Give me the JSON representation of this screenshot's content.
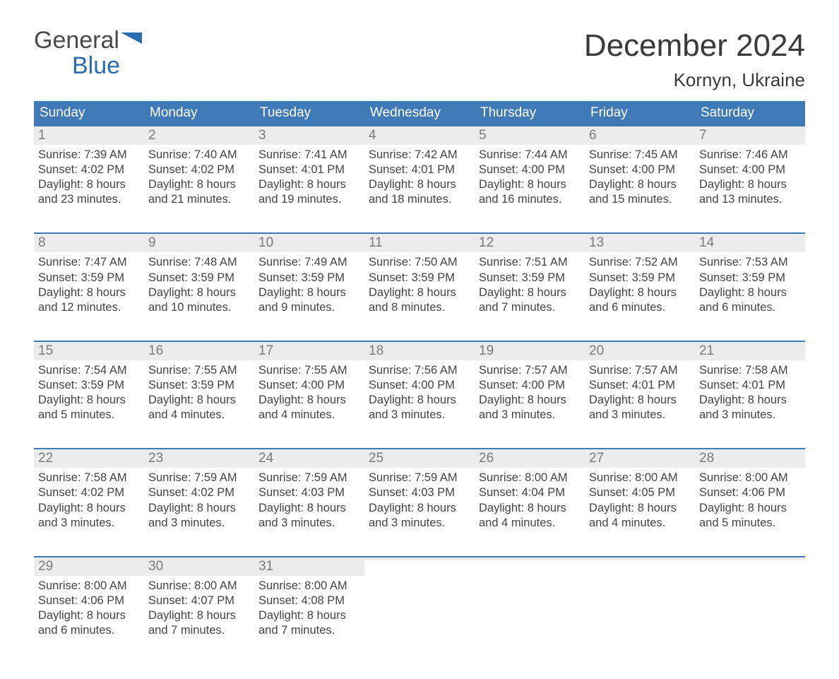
{
  "brand": {
    "line1": "General",
    "line2": "Blue"
  },
  "title": "December 2024",
  "location": "Kornyn, Ukraine",
  "colors": {
    "header_bg": "#3f7ab6",
    "header_text": "#ffffff",
    "week_border": "#3f7ab6",
    "daynum_bg": "#ececec",
    "daynum_text": "#7a7a7a",
    "body_text": "#444444",
    "page_bg": "#ffffff",
    "logo_gray": "#4a4a4a",
    "logo_blue": "#2a6cb0"
  },
  "typography": {
    "title_fontsize": 44,
    "location_fontsize": 26,
    "dow_fontsize": 19,
    "daynum_fontsize": 19,
    "body_fontsize": 16.5,
    "font_family": "Arial"
  },
  "days_of_week": [
    "Sunday",
    "Monday",
    "Tuesday",
    "Wednesday",
    "Thursday",
    "Friday",
    "Saturday"
  ],
  "labels": {
    "sunrise": "Sunrise:",
    "sunset": "Sunset:",
    "daylight": "Daylight:"
  },
  "weeks": [
    [
      {
        "n": "1",
        "sunrise": "7:39 AM",
        "sunset": "4:02 PM",
        "dl1": "8 hours",
        "dl2": "and 23 minutes."
      },
      {
        "n": "2",
        "sunrise": "7:40 AM",
        "sunset": "4:02 PM",
        "dl1": "8 hours",
        "dl2": "and 21 minutes."
      },
      {
        "n": "3",
        "sunrise": "7:41 AM",
        "sunset": "4:01 PM",
        "dl1": "8 hours",
        "dl2": "and 19 minutes."
      },
      {
        "n": "4",
        "sunrise": "7:42 AM",
        "sunset": "4:01 PM",
        "dl1": "8 hours",
        "dl2": "and 18 minutes."
      },
      {
        "n": "5",
        "sunrise": "7:44 AM",
        "sunset": "4:00 PM",
        "dl1": "8 hours",
        "dl2": "and 16 minutes."
      },
      {
        "n": "6",
        "sunrise": "7:45 AM",
        "sunset": "4:00 PM",
        "dl1": "8 hours",
        "dl2": "and 15 minutes."
      },
      {
        "n": "7",
        "sunrise": "7:46 AM",
        "sunset": "4:00 PM",
        "dl1": "8 hours",
        "dl2": "and 13 minutes."
      }
    ],
    [
      {
        "n": "8",
        "sunrise": "7:47 AM",
        "sunset": "3:59 PM",
        "dl1": "8 hours",
        "dl2": "and 12 minutes."
      },
      {
        "n": "9",
        "sunrise": "7:48 AM",
        "sunset": "3:59 PM",
        "dl1": "8 hours",
        "dl2": "and 10 minutes."
      },
      {
        "n": "10",
        "sunrise": "7:49 AM",
        "sunset": "3:59 PM",
        "dl1": "8 hours",
        "dl2": "and 9 minutes."
      },
      {
        "n": "11",
        "sunrise": "7:50 AM",
        "sunset": "3:59 PM",
        "dl1": "8 hours",
        "dl2": "and 8 minutes."
      },
      {
        "n": "12",
        "sunrise": "7:51 AM",
        "sunset": "3:59 PM",
        "dl1": "8 hours",
        "dl2": "and 7 minutes."
      },
      {
        "n": "13",
        "sunrise": "7:52 AM",
        "sunset": "3:59 PM",
        "dl1": "8 hours",
        "dl2": "and 6 minutes."
      },
      {
        "n": "14",
        "sunrise": "7:53 AM",
        "sunset": "3:59 PM",
        "dl1": "8 hours",
        "dl2": "and 6 minutes."
      }
    ],
    [
      {
        "n": "15",
        "sunrise": "7:54 AM",
        "sunset": "3:59 PM",
        "dl1": "8 hours",
        "dl2": "and 5 minutes."
      },
      {
        "n": "16",
        "sunrise": "7:55 AM",
        "sunset": "3:59 PM",
        "dl1": "8 hours",
        "dl2": "and 4 minutes."
      },
      {
        "n": "17",
        "sunrise": "7:55 AM",
        "sunset": "4:00 PM",
        "dl1": "8 hours",
        "dl2": "and 4 minutes."
      },
      {
        "n": "18",
        "sunrise": "7:56 AM",
        "sunset": "4:00 PM",
        "dl1": "8 hours",
        "dl2": "and 3 minutes."
      },
      {
        "n": "19",
        "sunrise": "7:57 AM",
        "sunset": "4:00 PM",
        "dl1": "8 hours",
        "dl2": "and 3 minutes."
      },
      {
        "n": "20",
        "sunrise": "7:57 AM",
        "sunset": "4:01 PM",
        "dl1": "8 hours",
        "dl2": "and 3 minutes."
      },
      {
        "n": "21",
        "sunrise": "7:58 AM",
        "sunset": "4:01 PM",
        "dl1": "8 hours",
        "dl2": "and 3 minutes."
      }
    ],
    [
      {
        "n": "22",
        "sunrise": "7:58 AM",
        "sunset": "4:02 PM",
        "dl1": "8 hours",
        "dl2": "and 3 minutes."
      },
      {
        "n": "23",
        "sunrise": "7:59 AM",
        "sunset": "4:02 PM",
        "dl1": "8 hours",
        "dl2": "and 3 minutes."
      },
      {
        "n": "24",
        "sunrise": "7:59 AM",
        "sunset": "4:03 PM",
        "dl1": "8 hours",
        "dl2": "and 3 minutes."
      },
      {
        "n": "25",
        "sunrise": "7:59 AM",
        "sunset": "4:03 PM",
        "dl1": "8 hours",
        "dl2": "and 3 minutes."
      },
      {
        "n": "26",
        "sunrise": "8:00 AM",
        "sunset": "4:04 PM",
        "dl1": "8 hours",
        "dl2": "and 4 minutes."
      },
      {
        "n": "27",
        "sunrise": "8:00 AM",
        "sunset": "4:05 PM",
        "dl1": "8 hours",
        "dl2": "and 4 minutes."
      },
      {
        "n": "28",
        "sunrise": "8:00 AM",
        "sunset": "4:06 PM",
        "dl1": "8 hours",
        "dl2": "and 5 minutes."
      }
    ],
    [
      {
        "n": "29",
        "sunrise": "8:00 AM",
        "sunset": "4:06 PM",
        "dl1": "8 hours",
        "dl2": "and 6 minutes."
      },
      {
        "n": "30",
        "sunrise": "8:00 AM",
        "sunset": "4:07 PM",
        "dl1": "8 hours",
        "dl2": "and 7 minutes."
      },
      {
        "n": "31",
        "sunrise": "8:00 AM",
        "sunset": "4:08 PM",
        "dl1": "8 hours",
        "dl2": "and 7 minutes."
      },
      {
        "empty": true
      },
      {
        "empty": true
      },
      {
        "empty": true
      },
      {
        "empty": true
      }
    ]
  ]
}
